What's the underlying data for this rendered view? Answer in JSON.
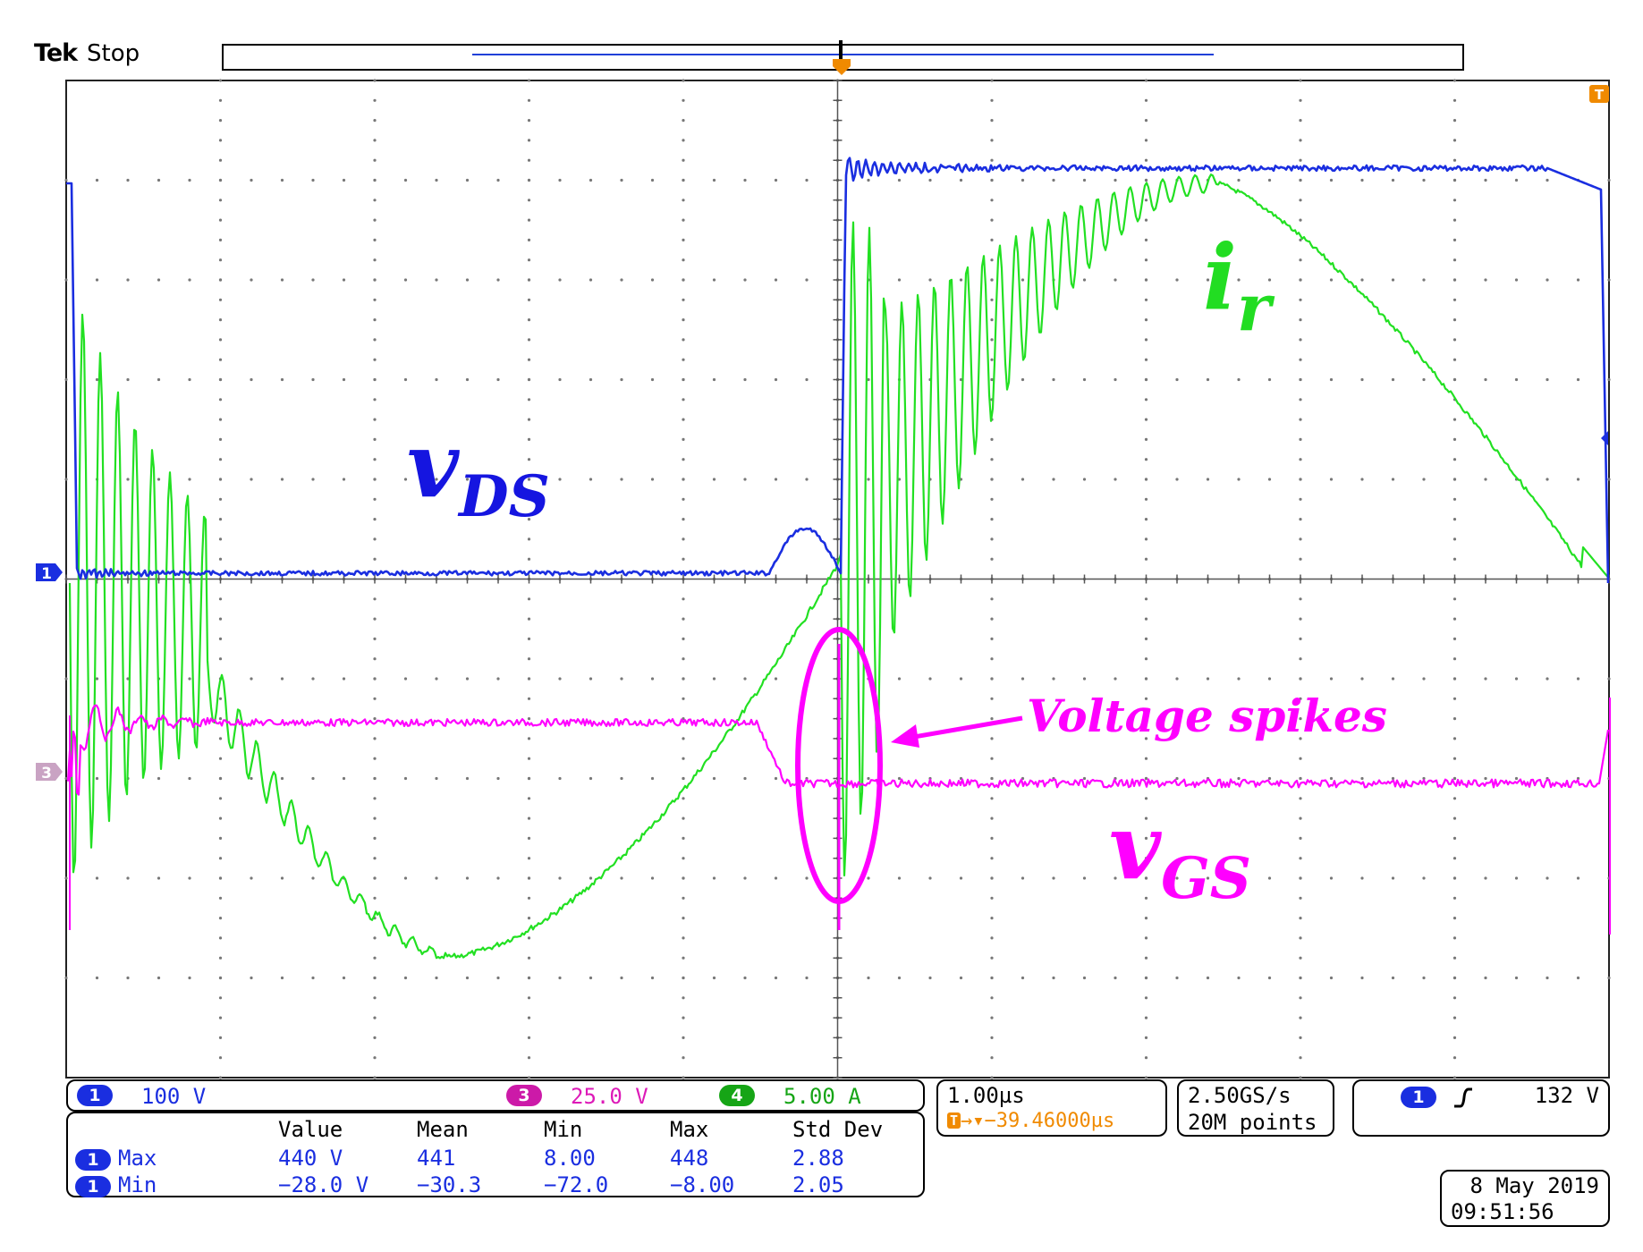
{
  "status": {
    "brand": "Tek",
    "acq_state": "Stop"
  },
  "colors": {
    "ch1": "#1a2ee0",
    "ch3": "#ff00ff",
    "ch4": "#22e022",
    "trigger": "#f08a00",
    "grid": "#777777",
    "annotation_vds": "#1515e0",
    "annotation_ir": "#22dd22",
    "annotation_vgs": "#ff00ff"
  },
  "markers": {
    "ch1_marker": "1",
    "ch3_marker": "3",
    "trigger_marker": "T"
  },
  "annotations": {
    "vds_main": "v",
    "vds_sub": "DS",
    "ir_main": "i",
    "ir_sub": "r",
    "vgs_main": "v",
    "vgs_sub": "GS",
    "spikes": "Voltage spikes"
  },
  "channels": {
    "ch1": {
      "badge": "1",
      "scale": "100 V"
    },
    "ch3": {
      "badge": "3",
      "scale": "25.0 V"
    },
    "ch4": {
      "badge": "4",
      "scale": "5.00 A"
    }
  },
  "timebase": {
    "scale": "1.00µs",
    "trigger_position": "→▾−39.46000µs"
  },
  "acquisition": {
    "sample_rate": "2.50GS/s",
    "record_length": "20M points"
  },
  "trigger": {
    "source_badge": "1",
    "slope": "rising-edge-icon",
    "level": "132 V"
  },
  "measurements": {
    "headers": [
      "Value",
      "Mean",
      "Min",
      "Max",
      "Std Dev"
    ],
    "rows": [
      {
        "badge": "1",
        "name": "Max",
        "value": "440 V",
        "mean": "441",
        "min": "8.00",
        "max": "448",
        "std": "2.88"
      },
      {
        "badge": "1",
        "name": "Min",
        "value": "−28.0 V",
        "mean": "−30.3",
        "min": "−72.0",
        "max": "−8.00",
        "std": "2.05"
      }
    ]
  },
  "datetime": {
    "date": "8 May 2019",
    "time": "09:51:56"
  }
}
